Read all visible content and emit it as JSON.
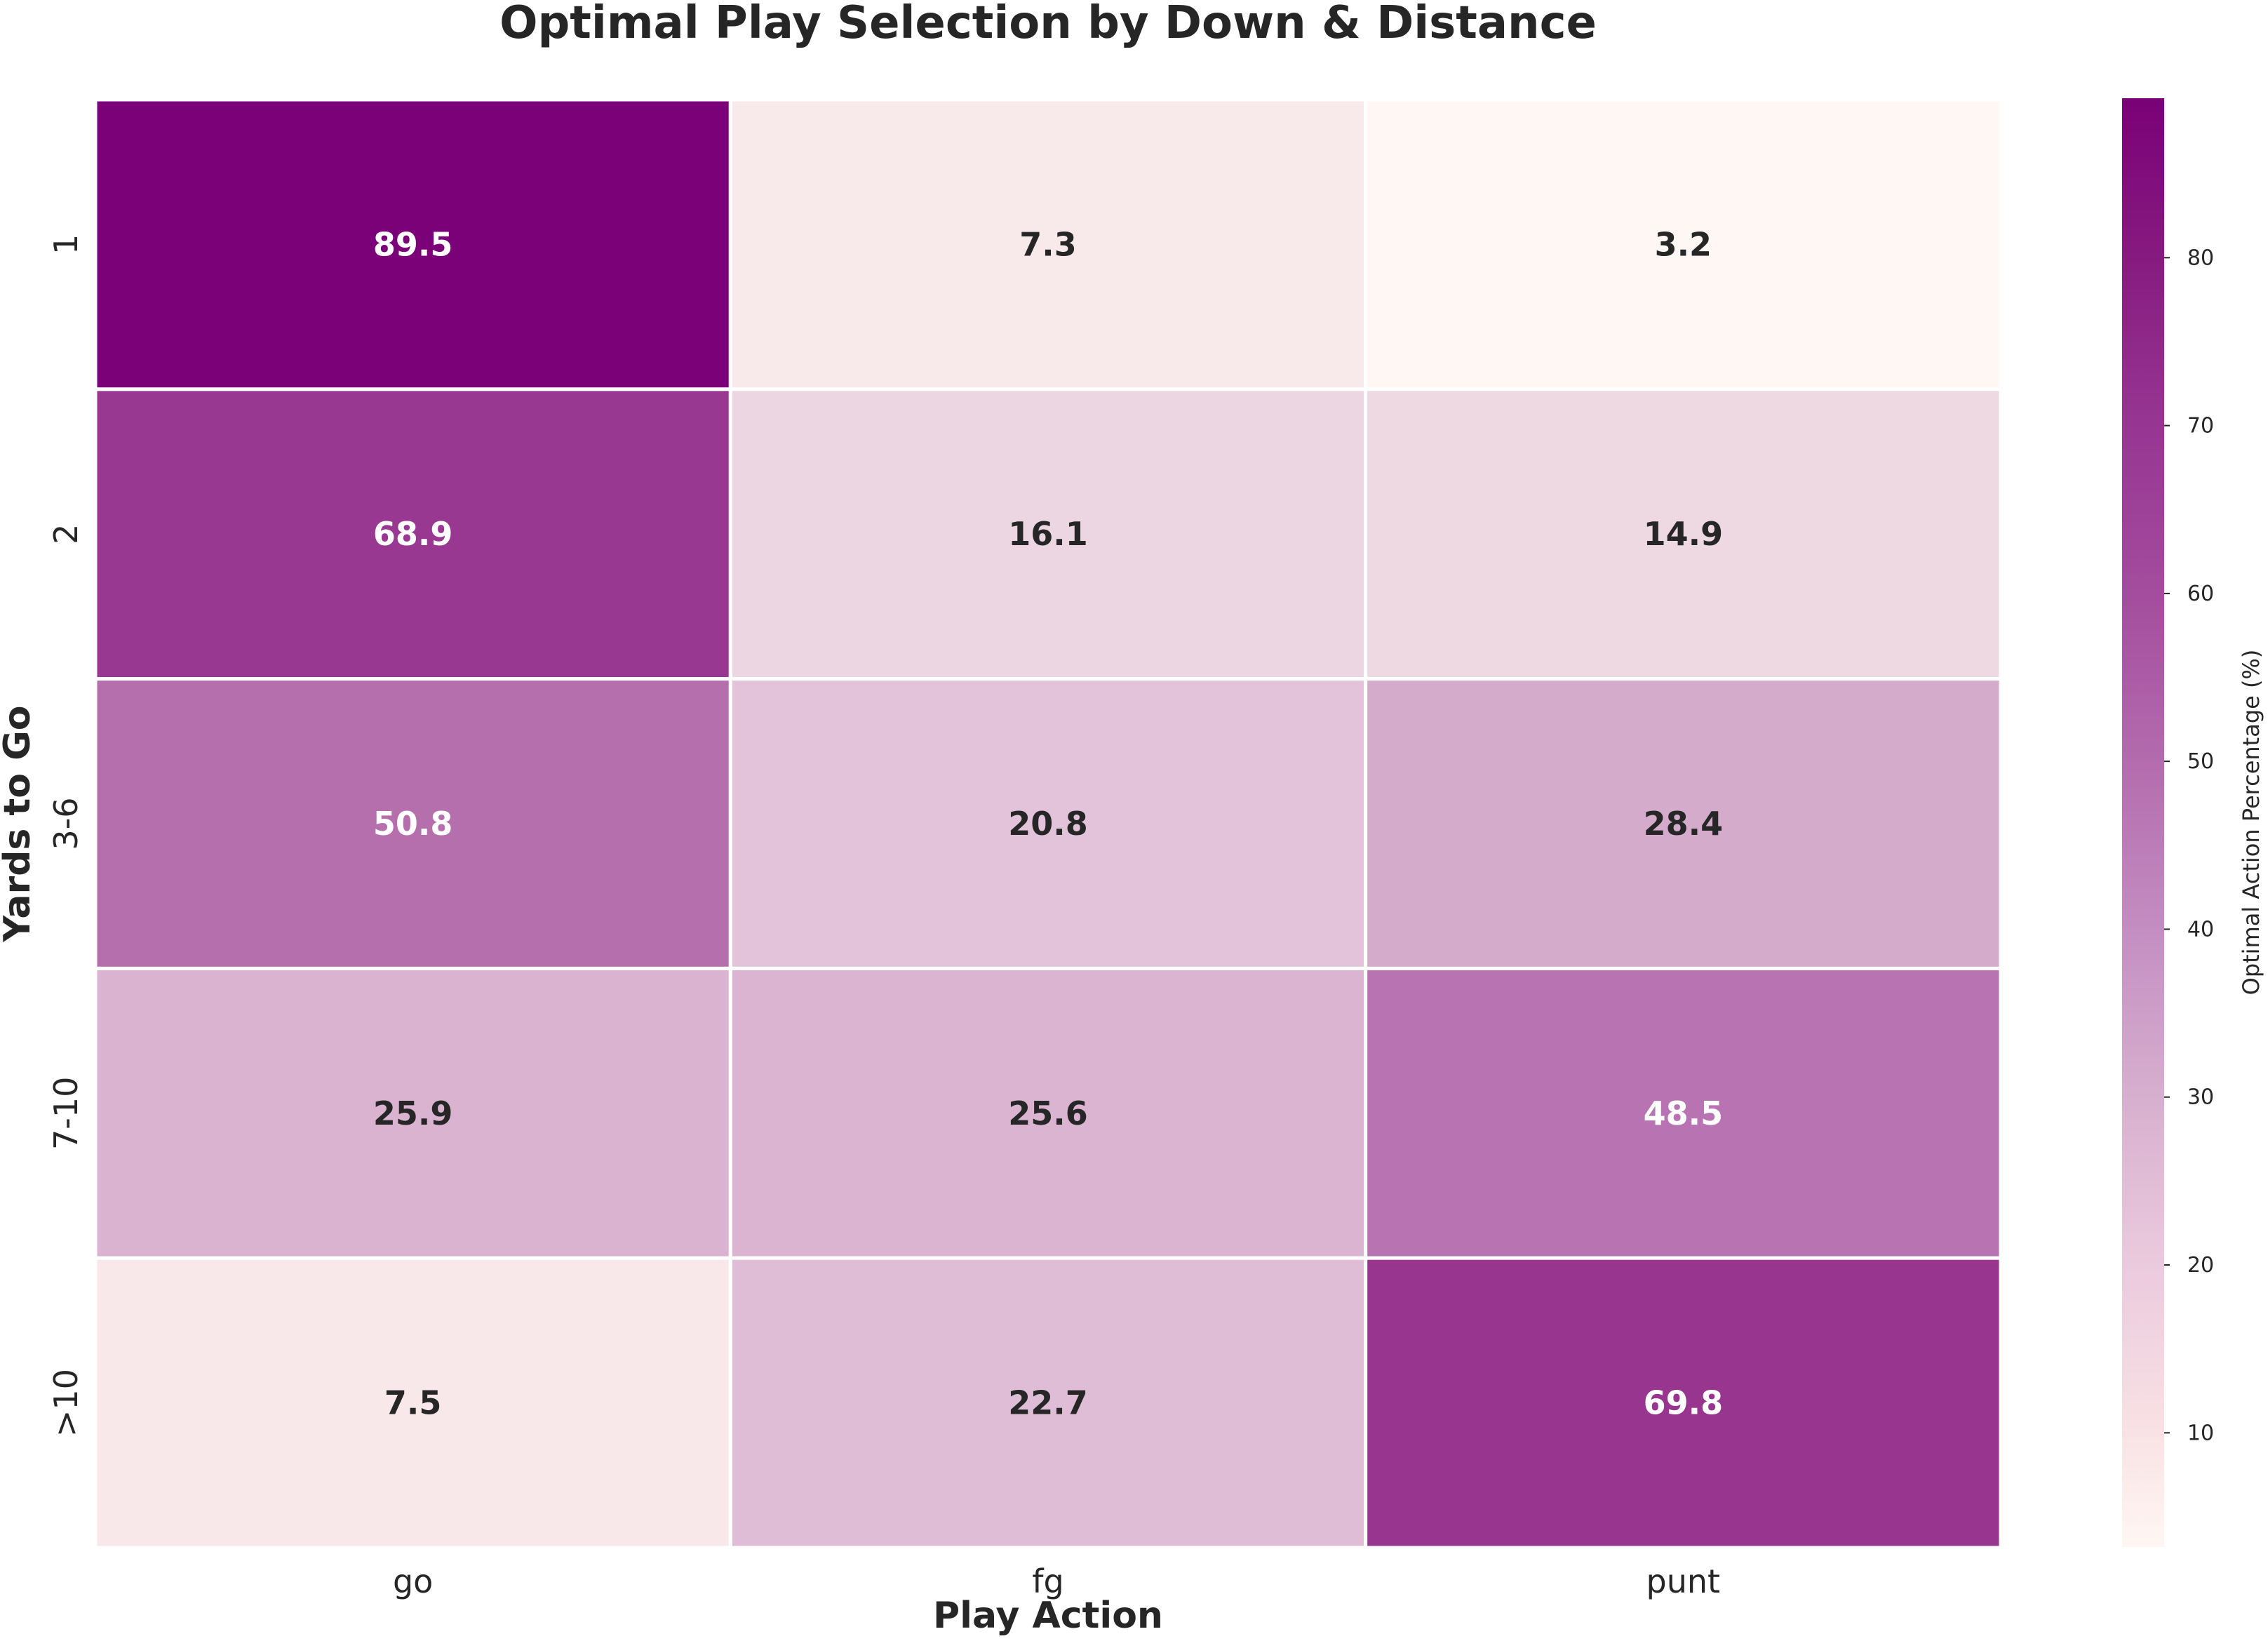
{
  "chart_data": {
    "type": "heatmap",
    "title": "Optimal Play Selection by Down & Distance",
    "xlabel": "Play Action",
    "ylabel": "Yards to Go",
    "columns": [
      "go",
      "fg",
      "punt"
    ],
    "rows": [
      "1",
      "2",
      "3-6",
      "7-10",
      ">10"
    ],
    "values": [
      [
        89.5,
        7.3,
        3.2
      ],
      [
        68.9,
        16.1,
        14.9
      ],
      [
        50.8,
        20.8,
        28.4
      ],
      [
        25.9,
        25.6,
        48.5
      ],
      [
        7.5,
        22.7,
        69.8
      ]
    ],
    "value_format": "1 decimal",
    "colorbar": {
      "label": "Optimal Action Percentage (%)",
      "range": [
        3.2,
        89.5
      ],
      "ticks": [
        10,
        20,
        30,
        40,
        50,
        60,
        70,
        80
      ],
      "colormap": "RdPu",
      "low_color": "#fff7f3",
      "high_color": "#7a0177"
    },
    "grid_line_color": "#ffffff"
  }
}
